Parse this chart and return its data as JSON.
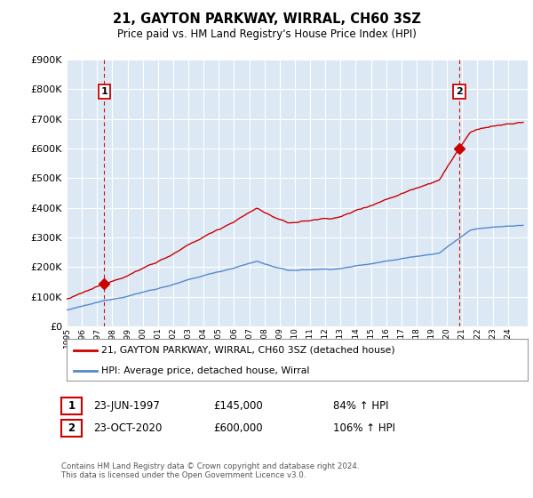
{
  "title": "21, GAYTON PARKWAY, WIRRAL, CH60 3SZ",
  "subtitle": "Price paid vs. HM Land Registry's House Price Index (HPI)",
  "legend_line1": "21, GAYTON PARKWAY, WIRRAL, CH60 3SZ (detached house)",
  "legend_line2": "HPI: Average price, detached house, Wirral",
  "annotation1_date": "23-JUN-1997",
  "annotation1_price": "£145,000",
  "annotation1_hpi": "84% ↑ HPI",
  "annotation2_date": "23-OCT-2020",
  "annotation2_price": "£600,000",
  "annotation2_hpi": "106% ↑ HPI",
  "footer": "Contains HM Land Registry data © Crown copyright and database right 2024.\nThis data is licensed under the Open Government Licence v3.0.",
  "plot_bg_color": "#dce9f5",
  "hpi_color": "#5588cc",
  "price_color": "#cc0000",
  "marker_color": "#cc0000",
  "dashed_color": "#cc1111",
  "grid_color": "#ffffff",
  "ylim": [
    0,
    900000
  ],
  "yticks": [
    0,
    100000,
    200000,
    300000,
    400000,
    500000,
    600000,
    700000,
    800000,
    900000
  ],
  "sale1_year": 1997.47,
  "sale1_price": 145000,
  "sale2_year": 2020.81,
  "sale2_price": 600000,
  "xlim_start": 1995.0,
  "xlim_end": 2025.3
}
